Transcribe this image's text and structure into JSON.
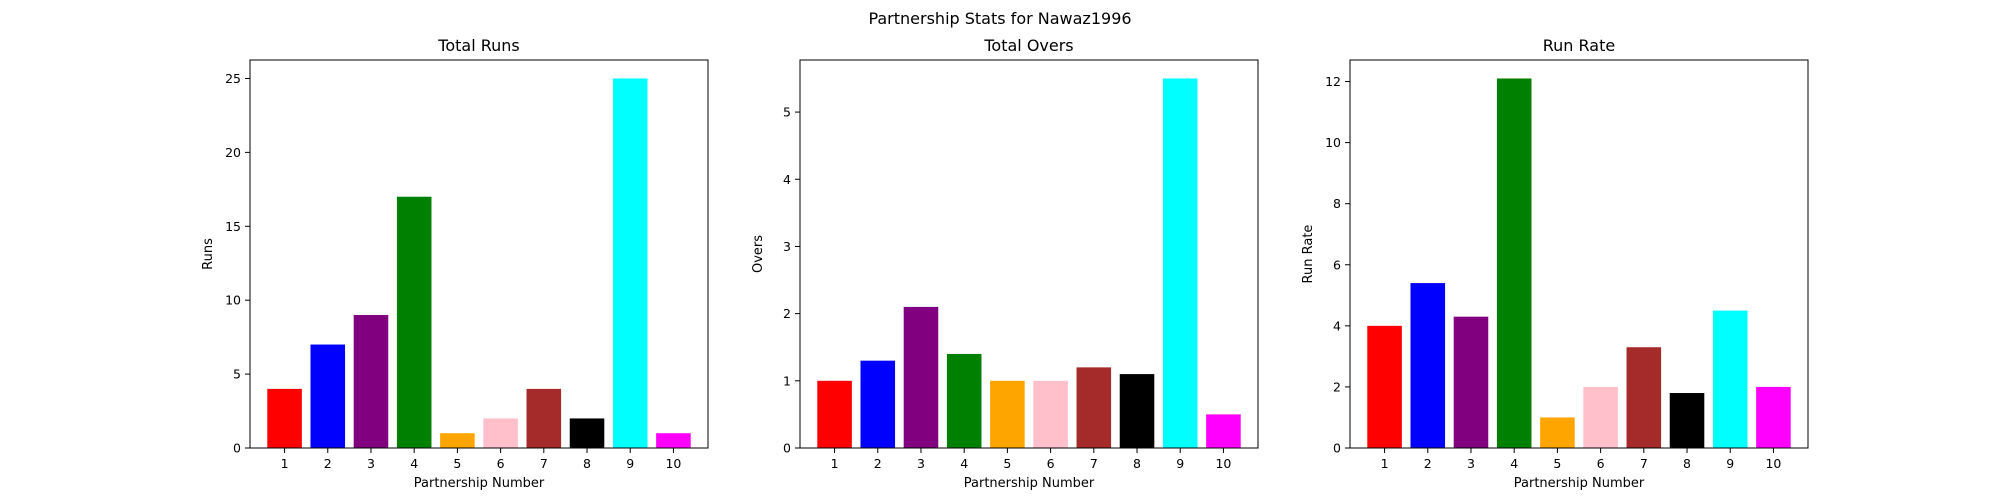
{
  "figure": {
    "title": "Partnership Stats for Nawaz1996"
  },
  "chart_data": [
    {
      "type": "bar",
      "title": "Total Runs",
      "xlabel": "Partnership Number",
      "ylabel": "Runs",
      "categories": [
        "1",
        "2",
        "3",
        "4",
        "5",
        "6",
        "7",
        "8",
        "9",
        "10"
      ],
      "values": [
        4,
        7,
        9,
        17,
        1,
        2,
        4,
        2,
        25,
        1
      ],
      "colors": [
        "#ff0000",
        "#0000ff",
        "#800080",
        "#008000",
        "#ffa500",
        "#ffc0cb",
        "#a52a2a",
        "#000000",
        "#00ffff",
        "#ff00ff"
      ],
      "ylim": [
        0,
        26.25
      ],
      "yticks": [
        0,
        5,
        10,
        15,
        20,
        25
      ],
      "grid": false
    },
    {
      "type": "bar",
      "title": "Total Overs",
      "xlabel": "Partnership Number",
      "ylabel": "Overs",
      "categories": [
        "1",
        "2",
        "3",
        "4",
        "5",
        "6",
        "7",
        "8",
        "9",
        "10"
      ],
      "values": [
        1.0,
        1.3,
        2.1,
        1.4,
        1.0,
        1.0,
        1.2,
        1.1,
        5.5,
        0.5
      ],
      "colors": [
        "#ff0000",
        "#0000ff",
        "#800080",
        "#008000",
        "#ffa500",
        "#ffc0cb",
        "#a52a2a",
        "#000000",
        "#00ffff",
        "#ff00ff"
      ],
      "ylim": [
        0,
        5.775
      ],
      "yticks": [
        0,
        1,
        2,
        3,
        4,
        5
      ],
      "grid": false
    },
    {
      "type": "bar",
      "title": "Run Rate",
      "xlabel": "Partnership Number",
      "ylabel": "Run Rate",
      "categories": [
        "1",
        "2",
        "3",
        "4",
        "5",
        "6",
        "7",
        "8",
        "9",
        "10"
      ],
      "values": [
        4.0,
        5.4,
        4.3,
        12.1,
        1.0,
        2.0,
        3.3,
        1.8,
        4.5,
        2.0
      ],
      "colors": [
        "#ff0000",
        "#0000ff",
        "#800080",
        "#008000",
        "#ffa500",
        "#ffc0cb",
        "#a52a2a",
        "#000000",
        "#00ffff",
        "#ff00ff"
      ],
      "ylim": [
        0,
        12.705
      ],
      "yticks": [
        0,
        2,
        4,
        6,
        8,
        10,
        12
      ],
      "grid": false
    }
  ]
}
